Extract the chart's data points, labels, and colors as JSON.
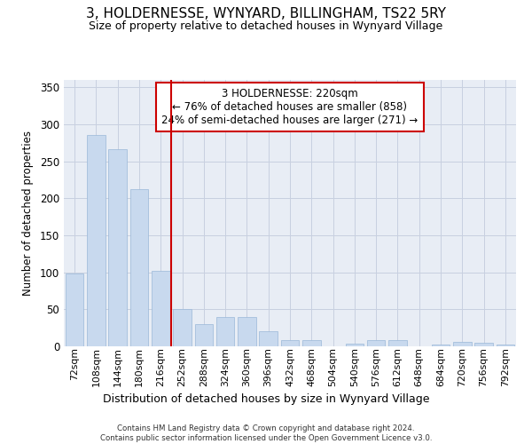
{
  "title_line1": "3, HOLDERNESSE, WYNYARD, BILLINGHAM, TS22 5RY",
  "title_line2": "Size of property relative to detached houses in Wynyard Village",
  "xlabel": "Distribution of detached houses by size in Wynyard Village",
  "ylabel": "Number of detached properties",
  "categories": [
    "72sqm",
    "108sqm",
    "144sqm",
    "180sqm",
    "216sqm",
    "252sqm",
    "288sqm",
    "324sqm",
    "360sqm",
    "396sqm",
    "432sqm",
    "468sqm",
    "504sqm",
    "540sqm",
    "576sqm",
    "612sqm",
    "648sqm",
    "684sqm",
    "720sqm",
    "756sqm",
    "792sqm"
  ],
  "values": [
    99,
    286,
    267,
    212,
    102,
    51,
    30,
    40,
    40,
    20,
    8,
    8,
    0,
    4,
    9,
    9,
    0,
    2,
    6,
    5,
    3
  ],
  "bar_color": "#c8d9ee",
  "bar_edge_color": "#9ab8d8",
  "vline_color": "#cc0000",
  "vline_x_index": 4,
  "annotation_text": "3 HOLDERNESSE: 220sqm\n← 76% of detached houses are smaller (858)\n24% of semi-detached houses are larger (271) →",
  "annotation_box_color": "white",
  "annotation_box_edge_color": "#cc0000",
  "ylim": [
    0,
    360
  ],
  "yticks": [
    0,
    50,
    100,
    150,
    200,
    250,
    300,
    350
  ],
  "grid_color": "#c8d0e0",
  "bg_color": "#e8edf5",
  "title1_fontsize": 11,
  "title2_fontsize": 9,
  "footer_line1": "Contains HM Land Registry data © Crown copyright and database right 2024.",
  "footer_line2": "Contains public sector information licensed under the Open Government Licence v3.0."
}
